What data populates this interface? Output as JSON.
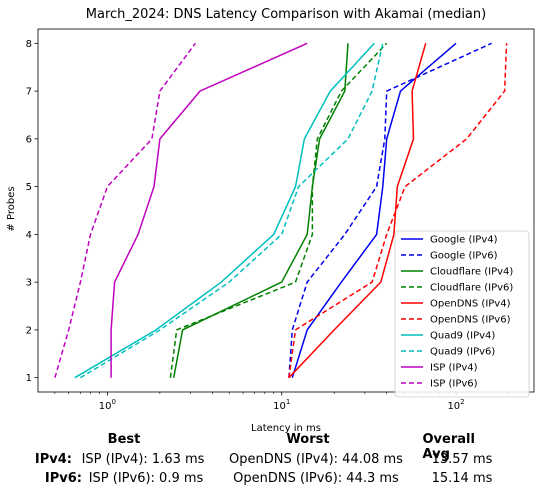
{
  "chart_data": {
    "type": "line",
    "title": "March_2024: DNS Latency Comparison with Akamai (median)",
    "xlabel": "Latency in ms",
    "ylabel": "# Probes",
    "xscale": "log",
    "xlim": [
      0.4,
      280
    ],
    "ylim": [
      0.7,
      8.3
    ],
    "x_ticks": [
      {
        "value": 1,
        "base": "10",
        "exp": "0"
      },
      {
        "value": 10,
        "base": "10",
        "exp": "1"
      },
      {
        "value": 100,
        "base": "10",
        "exp": "2"
      }
    ],
    "y_ticks": [
      1,
      2,
      3,
      4,
      5,
      6,
      7,
      8
    ],
    "grid": false,
    "legend_position": "lower-right",
    "series": [
      {
        "name": "Google (IPv4)",
        "color": "#0000ee",
        "style": "solid",
        "x": [
          11.5,
          14.0,
          22.0,
          35.0,
          38.0,
          40.0,
          48.0,
          100.0
        ],
        "y": [
          1,
          2,
          3,
          4,
          5,
          6,
          7,
          8
        ]
      },
      {
        "name": "Google (IPv6)",
        "color": "#0000ee",
        "style": "dashed",
        "x": [
          11.0,
          11.5,
          14.0,
          23.0,
          35.0,
          39.0,
          40.0,
          160.0
        ],
        "y": [
          1,
          2,
          3,
          4,
          5,
          6,
          7,
          8
        ]
      },
      {
        "name": "Cloudflare (IPv4)",
        "color": "#008000",
        "style": "solid",
        "x": [
          2.4,
          2.7,
          10.0,
          14.0,
          15.0,
          16.5,
          23.0,
          24.0
        ],
        "y": [
          1,
          2,
          3,
          4,
          5,
          6,
          7,
          8
        ]
      },
      {
        "name": "Cloudflare (IPv6)",
        "color": "#008000",
        "style": "dashed",
        "x": [
          2.3,
          2.5,
          12.0,
          15.0,
          15.0,
          16.0,
          22.0,
          40.0
        ],
        "y": [
          1,
          2,
          3,
          4,
          5,
          6,
          7,
          8
        ]
      },
      {
        "name": "OpenDNS (IPv4)",
        "color": "#ff0000",
        "style": "solid",
        "x": [
          11.0,
          20.0,
          37.0,
          44.0,
          46.0,
          57.0,
          56.0,
          67.0
        ],
        "y": [
          1,
          2,
          3,
          4,
          5,
          6,
          7,
          8
        ]
      },
      {
        "name": "OpenDNS (IPv6)",
        "color": "#ff0000",
        "style": "dashed",
        "x": [
          11.0,
          12.0,
          33.0,
          40.0,
          51.0,
          115.0,
          190.0,
          195.0
        ],
        "y": [
          1,
          2,
          3,
          4,
          5,
          6,
          7,
          8
        ]
      },
      {
        "name": "Quad9 (IPv4)",
        "color": "#00bfbf",
        "style": "solid",
        "x": [
          0.65,
          1.9,
          4.5,
          9.0,
          12.0,
          13.5,
          19.0,
          34.0
        ],
        "y": [
          1,
          2,
          3,
          4,
          5,
          6,
          7,
          8
        ]
      },
      {
        "name": "Quad9 (IPv6)",
        "color": "#00bfbf",
        "style": "dashed",
        "x": [
          0.7,
          2.0,
          5.0,
          10.0,
          12.5,
          24.0,
          33.0,
          38.0
        ],
        "y": [
          1,
          2,
          3,
          4,
          5,
          6,
          7,
          8
        ]
      },
      {
        "name": "ISP (IPv4)",
        "color": "#bf00bf",
        "style": "solid",
        "x": [
          1.05,
          1.05,
          1.1,
          1.5,
          1.85,
          2.0,
          3.4,
          14.0
        ],
        "y": [
          1,
          2,
          3,
          4,
          5,
          6,
          7,
          8
        ]
      },
      {
        "name": "ISP (IPv6)",
        "color": "#bf00bf",
        "style": "dashed",
        "x": [
          0.5,
          0.6,
          0.7,
          0.8,
          1.0,
          1.8,
          2.0,
          3.2
        ],
        "y": [
          1,
          2,
          3,
          4,
          5,
          6,
          7,
          8
        ]
      }
    ]
  },
  "summary": {
    "headers": {
      "best": "Best",
      "worst": "Worst",
      "avg": "Overall Avg"
    },
    "rows": [
      {
        "label": "IPv4",
        "colon": ":",
        "best": "ISP (IPv4): 1.63 ms",
        "worst": "OpenDNS (IPv4): 44.08 ms",
        "avg": "13.57 ms"
      },
      {
        "label": "IPv6",
        "colon": ":",
        "best": "ISP (IPv6): 0.9 ms",
        "worst": "OpenDNS (IPv6): 44.3 ms",
        "avg": "15.14 ms"
      }
    ]
  }
}
